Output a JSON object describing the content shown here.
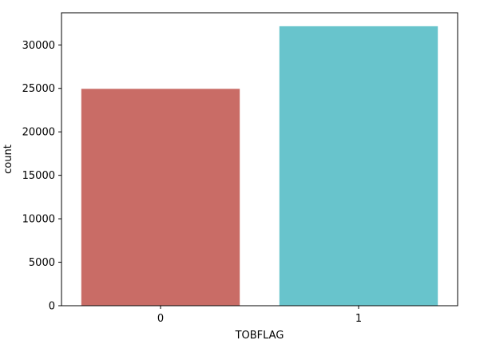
{
  "chart_data": {
    "type": "bar",
    "categories": [
      "0",
      "1"
    ],
    "values": [
      24950,
      32150
    ],
    "colors": [
      "#c96c66",
      "#68c4cc"
    ],
    "xlabel": "TOBFLAG",
    "ylabel": "count",
    "ylim": [
      0,
      33700
    ],
    "yticks": [
      0,
      5000,
      10000,
      15000,
      20000,
      25000,
      30000
    ],
    "grid": false
  }
}
